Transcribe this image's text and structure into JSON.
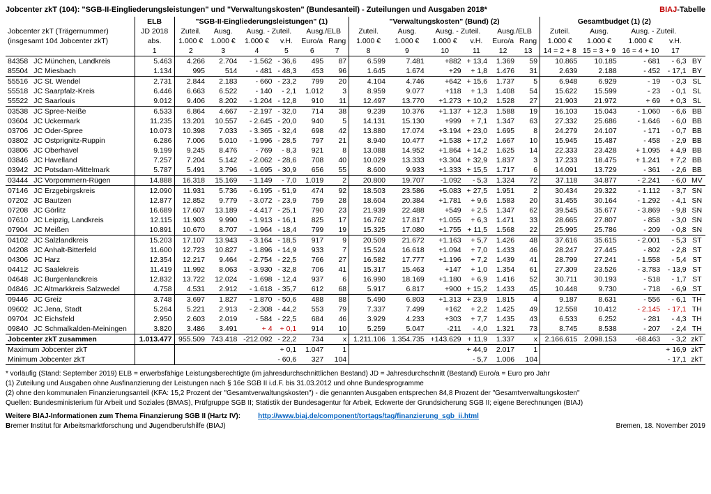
{
  "title": "Jobcenter zkT (104): \"SGB-II-Eingliederungsleistungen\" und \"Verwaltungskosten\" (Bundesanteil) - Zuteilungen und Ausgaben 2018*",
  "brand": "BIAJ",
  "brand_suffix": "-Tabelle",
  "group_headers": {
    "elb": "ELB",
    "sgb": "\"SGB-II-Eingliederungsleistungen\" (1)",
    "vk": "\"Verwaltungskosten\" (Bund) (2)",
    "gb": "Gesamtbudget (1) (2)"
  },
  "sub_left1": "Jobcenter zkT (Trägernummer)",
  "sub_left2": "(insgesamt 104 Jobcenter zkT)",
  "sub_elb": "JD 2018",
  "sub_elb2": "abs.",
  "cols": {
    "zuteil": "Zuteil.",
    "ausg": "Ausg.",
    "diff": "Ausg. - Zuteil.",
    "ausgelb": "Ausg./ELB",
    "u1000": "1.000 €",
    "vh": "v.H.",
    "euroa": "Euro/a",
    "rang": "Rang"
  },
  "colnums": [
    "1",
    "2",
    "3",
    "4",
    "5",
    "6",
    "7",
    "8",
    "9",
    "10",
    "11",
    "12",
    "13",
    "14 = 2 + 8",
    "15 = 3 + 9",
    "16 = 4 + 10",
    "17"
  ],
  "rows": [
    {
      "id": "84358",
      "name": "JC München, Landkreis",
      "elb": "5.463",
      "c": [
        "4.266",
        "2.704",
        "- 1.562",
        "- 36,6",
        "495",
        "87",
        "6.599",
        "7.481",
        "+882",
        "+ 13,4",
        "1.369",
        "59",
        "10.865",
        "10.185",
        "- 681",
        "- 6,3"
      ],
      "land": "BY"
    },
    {
      "id": "85504",
      "name": "JC Miesbach",
      "elb": "1.134",
      "c": [
        "995",
        "514",
        "- 481",
        "- 48,3",
        "453",
        "96",
        "1.645",
        "1.674",
        "+29",
        "+ 1,8",
        "1.476",
        "31",
        "2.639",
        "2.188",
        "- 452",
        "- 17,1"
      ],
      "land": "BY"
    },
    {
      "id": "55516",
      "name": "JC St. Wendel",
      "elb": "2.731",
      "c": [
        "2.844",
        "2.183",
        "- 660",
        "- 23,2",
        "799",
        "20",
        "4.104",
        "4.746",
        "+642",
        "+ 15,6",
        "1.737",
        "5",
        "6.948",
        "6.929",
        "- 19",
        "- 0,3"
      ],
      "land": "SL",
      "top": true
    },
    {
      "id": "55518",
      "name": "JC Saarpfalz-Kreis",
      "elb": "6.446",
      "c": [
        "6.663",
        "6.522",
        "- 140",
        "- 2,1",
        "1.012",
        "3",
        "8.959",
        "9.077",
        "+118",
        "+ 1,3",
        "1.408",
        "54",
        "15.622",
        "15.599",
        "- 23",
        "- 0,1"
      ],
      "land": "SL"
    },
    {
      "id": "55522",
      "name": "JC Saarlouis",
      "elb": "9.012",
      "c": [
        "9.406",
        "8.202",
        "- 1.204",
        "- 12,8",
        "910",
        "11",
        "12.497",
        "13.770",
        "+1.273",
        "+ 10,2",
        "1.528",
        "27",
        "21.903",
        "21.972",
        "+ 69",
        "+ 0,3"
      ],
      "land": "SL"
    },
    {
      "id": "03538",
      "name": "JC Spree-Neiße",
      "elb": "6.533",
      "c": [
        "6.864",
        "4.667",
        "- 2.197",
        "- 32,0",
        "714",
        "38",
        "9.239",
        "10.376",
        "+1.137",
        "+ 12,3",
        "1.588",
        "19",
        "16.103",
        "15.043",
        "- 1.060",
        "- 6,6"
      ],
      "land": "BB",
      "top": true
    },
    {
      "id": "03604",
      "name": "JC Uckermark",
      "elb": "11.235",
      "c": [
        "13.201",
        "10.557",
        "- 2.645",
        "- 20,0",
        "940",
        "5",
        "14.131",
        "15.130",
        "+999",
        "+ 7,1",
        "1.347",
        "63",
        "27.332",
        "25.686",
        "- 1.646",
        "- 6,0"
      ],
      "land": "BB"
    },
    {
      "id": "03706",
      "name": "JC Oder-Spree",
      "elb": "10.073",
      "c": [
        "10.398",
        "7.033",
        "- 3.365",
        "- 32,4",
        "698",
        "42",
        "13.880",
        "17.074",
        "+3.194",
        "+ 23,0",
        "1.695",
        "8",
        "24.279",
        "24.107",
        "- 171",
        "- 0,7"
      ],
      "land": "BB"
    },
    {
      "id": "03802",
      "name": "JC Ostprignitz-Ruppin",
      "elb": "6.286",
      "c": [
        "7.006",
        "5.010",
        "- 1.996",
        "- 28,5",
        "797",
        "21",
        "8.940",
        "10.477",
        "+1.538",
        "+ 17,2",
        "1.667",
        "10",
        "15.945",
        "15.487",
        "- 458",
        "- 2,9"
      ],
      "land": "BB"
    },
    {
      "id": "03806",
      "name": "JC Oberhavel",
      "elb": "9.199",
      "c": [
        "9.245",
        "8.476",
        "- 769",
        "- 8,3",
        "921",
        "8",
        "13.088",
        "14.952",
        "+1.864",
        "+ 14,2",
        "1.625",
        "14",
        "22.333",
        "23.428",
        "+ 1.095",
        "+ 4,9"
      ],
      "land": "BB"
    },
    {
      "id": "03846",
      "name": "JC Havelland",
      "elb": "7.257",
      "c": [
        "7.204",
        "5.142",
        "- 2.062",
        "- 28,6",
        "708",
        "40",
        "10.029",
        "13.333",
        "+3.304",
        "+ 32,9",
        "1.837",
        "3",
        "17.233",
        "18.475",
        "+ 1.241",
        "+ 7,2"
      ],
      "land": "BB"
    },
    {
      "id": "03942",
      "name": "JC Potsdam-Mittelmark",
      "elb": "5.787",
      "c": [
        "5.491",
        "3.796",
        "- 1.695",
        "- 30,9",
        "656",
        "55",
        "8.600",
        "9.933",
        "+1.333",
        "+ 15,5",
        "1.717",
        "6",
        "14.091",
        "13.729",
        "- 361",
        "- 2,6"
      ],
      "land": "BB"
    },
    {
      "id": "03444",
      "name": "JC Vorpommern-Rügen",
      "elb": "14.888",
      "c": [
        "16.318",
        "15.169",
        "- 1.149",
        "- 7,0",
        "1.019",
        "2",
        "20.800",
        "19.707",
        "-1.092",
        "- 5,3",
        "1.324",
        "72",
        "37.118",
        "34.877",
        "- 2.241",
        "- 6,0"
      ],
      "land": "MV",
      "top": true,
      "bot": true
    },
    {
      "id": "07146",
      "name": "JC Erzgebirgskreis",
      "elb": "12.090",
      "c": [
        "11.931",
        "5.736",
        "- 6.195",
        "- 51,9",
        "474",
        "92",
        "18.503",
        "23.586",
        "+5.083",
        "+ 27,5",
        "1.951",
        "2",
        "30.434",
        "29.322",
        "- 1.112",
        "- 3,7"
      ],
      "land": "SN"
    },
    {
      "id": "07202",
      "name": "JC Bautzen",
      "elb": "12.877",
      "c": [
        "12.852",
        "9.779",
        "- 3.072",
        "- 23,9",
        "759",
        "28",
        "18.604",
        "20.384",
        "+1.781",
        "+ 9,6",
        "1.583",
        "20",
        "31.455",
        "30.164",
        "- 1.292",
        "- 4,1"
      ],
      "land": "SN"
    },
    {
      "id": "07208",
      "name": "JC Görlitz",
      "elb": "16.689",
      "c": [
        "17.607",
        "13.189",
        "- 4.417",
        "- 25,1",
        "790",
        "23",
        "21.939",
        "22.488",
        "+549",
        "+ 2,5",
        "1.347",
        "62",
        "39.545",
        "35.677",
        "- 3.869",
        "- 9,8"
      ],
      "land": "SN"
    },
    {
      "id": "07610",
      "name": "JC Leipzig, Landkreis",
      "elb": "12.115",
      "c": [
        "11.903",
        "9.990",
        "- 1.913",
        "- 16,1",
        "825",
        "17",
        "16.762",
        "17.817",
        "+1.055",
        "+ 6,3",
        "1.471",
        "33",
        "28.665",
        "27.807",
        "- 858",
        "- 3,0"
      ],
      "land": "SN"
    },
    {
      "id": "07904",
      "name": "JC Meißen",
      "elb": "10.891",
      "c": [
        "10.670",
        "8.707",
        "- 1.964",
        "- 18,4",
        "799",
        "19",
        "15.325",
        "17.080",
        "+1.755",
        "+ 11,5",
        "1.568",
        "22",
        "25.995",
        "25.786",
        "- 209",
        "- 0,8"
      ],
      "land": "SN"
    },
    {
      "id": "04102",
      "name": "JC Salzlandkreis",
      "elb": "15.203",
      "c": [
        "17.107",
        "13.943",
        "- 3.164",
        "- 18,5",
        "917",
        "9",
        "20.509",
        "21.672",
        "+1.163",
        "+ 5,7",
        "1.426",
        "48",
        "37.616",
        "35.615",
        "- 2.001",
        "- 5,3"
      ],
      "land": "ST",
      "top": true
    },
    {
      "id": "04208",
      "name": "JC Anhalt-Bitterfeld",
      "elb": "11.600",
      "c": [
        "12.723",
        "10.827",
        "- 1.896",
        "- 14,9",
        "933",
        "7",
        "15.524",
        "16.618",
        "+1.094",
        "+ 7,0",
        "1.433",
        "46",
        "28.247",
        "27.445",
        "- 802",
        "- 2,8"
      ],
      "land": "ST"
    },
    {
      "id": "04306",
      "name": "JC Harz",
      "elb": "12.354",
      "c": [
        "12.217",
        "9.464",
        "- 2.754",
        "- 22,5",
        "766",
        "27",
        "16.582",
        "17.777",
        "+1.196",
        "+ 7,2",
        "1.439",
        "41",
        "28.799",
        "27.241",
        "- 1.558",
        "- 5,4"
      ],
      "land": "ST"
    },
    {
      "id": "04412",
      "name": "JC Saalekreis",
      "elb": "11.419",
      "c": [
        "11.992",
        "8.063",
        "- 3.930",
        "- 32,8",
        "706",
        "41",
        "15.317",
        "15.463",
        "+147",
        "+ 1,0",
        "1.354",
        "61",
        "27.309",
        "23.526",
        "- 3.783",
        "- 13,9"
      ],
      "land": "ST"
    },
    {
      "id": "04648",
      "name": "JC Burgenlandkreis",
      "elb": "12.832",
      "c": [
        "13.722",
        "12.024",
        "- 1.698",
        "- 12,4",
        "937",
        "6",
        "16.990",
        "18.169",
        "+1.180",
        "+ 6,9",
        "1.416",
        "52",
        "30.711",
        "30.193",
        "- 518",
        "- 1,7"
      ],
      "land": "ST"
    },
    {
      "id": "04846",
      "name": "JC Altmarkkreis Salzwedel",
      "elb": "4.758",
      "c": [
        "4.531",
        "2.912",
        "- 1.618",
        "- 35,7",
        "612",
        "68",
        "5.917",
        "6.817",
        "+900",
        "+ 15,2",
        "1.433",
        "45",
        "10.448",
        "9.730",
        "- 718",
        "- 6,9"
      ],
      "land": "ST"
    },
    {
      "id": "09446",
      "name": "JC Greiz",
      "elb": "3.748",
      "c": [
        "3.697",
        "1.827",
        "- 1.870",
        "- 50,6",
        "488",
        "88",
        "5.490",
        "6.803",
        "+1.313",
        "+ 23,9",
        "1.815",
        "4",
        "9.187",
        "8.631",
        "- 556",
        "- 6,1"
      ],
      "land": "TH",
      "top": true
    },
    {
      "id": "09602",
      "name": "JC Jena, Stadt",
      "elb": "5.264",
      "c": [
        "5.221",
        "2.913",
        "- 2.308",
        "- 44,2",
        "553",
        "79",
        "7.337",
        "7.499",
        "+162",
        "+ 2,2",
        "1.425",
        "49",
        "12.558",
        "10.412",
        "- 2.145",
        "- 17,1"
      ],
      "land": "TH",
      "red16": true
    },
    {
      "id": "09704",
      "name": "JC Eichsfeld",
      "elb": "2.950",
      "c": [
        "2.603",
        "2.019",
        "- 584",
        "- 22,5",
        "684",
        "46",
        "3.929",
        "4.233",
        "+303",
        "+ 7,7",
        "1.435",
        "43",
        "6.533",
        "6.252",
        "- 281",
        "- 4,3"
      ],
      "land": "TH"
    },
    {
      "id": "09840",
      "name": "JC Schmalkalden-Meiningen",
      "elb": "3.820",
      "c": [
        "3.486",
        "3.491",
        "+ 4",
        "+ 0,1",
        "914",
        "10",
        "5.259",
        "5.047",
        "-211",
        "- 4,0",
        "1.321",
        "73",
        "8.745",
        "8.538",
        "- 207",
        "- 2,4"
      ],
      "land": "TH",
      "red4": true
    }
  ],
  "sum": {
    "label": "Jobcenter zkT zusammen",
    "elb": "1.013.477",
    "c": [
      "955.509",
      "743.418",
      "-212.092",
      "- 22,2",
      "734",
      "x",
      "1.211.106",
      "1.354.735",
      "+143.629",
      "+ 11,9",
      "1.337",
      "x",
      "2.166.615",
      "2.098.153",
      "-68.463",
      "- 3,2"
    ],
    "land": "zkT"
  },
  "max": {
    "label": "Maximum Jobcenter zkT",
    "c": [
      "",
      "",
      "",
      "+ 0,1",
      "1.047",
      "1",
      "",
      "",
      "",
      "+ 44,9",
      "2.017",
      "1",
      "",
      "",
      "",
      "+ 16,9"
    ],
    "land": "zkT"
  },
  "min": {
    "label": "Minimum Jobcenter zkT",
    "c": [
      "",
      "",
      "",
      "- 60,6",
      "327",
      "104",
      "",
      "",
      "",
      "- 5,7",
      "1.006",
      "104",
      "",
      "",
      "",
      "- 17,1"
    ],
    "land": "zkT"
  },
  "footnotes": [
    "* vorläufig (Stand: September 2019)        ELB = erwerbsfähige Leistungsberechtigte (im jahresdurchschnittlichen Bestand)                      JD = Jahresdurchschnitt (Bestand)                     Euro/a = Euro pro Jahr",
    "(1) Zuteilung und Ausgaben ohne Ausfinanzierung der Leistungen nach § 16e SGB II i.d.F. bis 31.03.2012 und ohne Bundesprogramme",
    "(2) ohne den kommunalen Finanzierungsanteil (KFA: 15,2 Prozent der \"Gesamtverwaltungskosten\") - die genannten Ausgaben entsprechen 84,8 Prozent der \"Gesamtverwaltungskosten\"",
    "Quellen: Bundesministerium für Arbeit und Soziales (BMAS), Prüfgruppe SGB II; Statistik der Bundesagentur für Arbeit, Eckwerte der Grundsicherung SGB II; eigene Berechnungen (BIAJ)"
  ],
  "link_label": "Weitere BIAJ-Informationen zum Thema Finanzierung SGB II (Hartz IV):",
  "link_url": "http://www.biaj.de/component/tortags/tag/finanzierung_sgb_ii.html",
  "bottom_left": "Bremer Institut für Arbeitsmarktforschung und Jugendberufshilfe (BIAJ)",
  "bottom_right": "Bremen, 18. November 2019"
}
